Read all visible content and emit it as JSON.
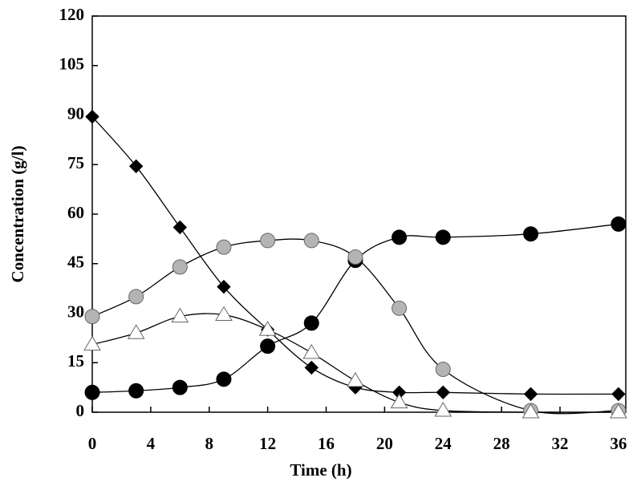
{
  "chart_data": {
    "type": "scatter",
    "x_label": "Time (h)",
    "y_label": "Concentration (g/l)",
    "x": [
      0,
      3,
      6,
      9,
      12,
      15,
      18,
      21,
      24,
      30,
      36
    ],
    "series": [
      {
        "color": "#000000",
        "marker": "diamond",
        "values": [
          89.5,
          74.5,
          56,
          38,
          25,
          13.5,
          7.5,
          6,
          6,
          5.5,
          5.5
        ]
      },
      {
        "color": "#000000",
        "marker": "circle",
        "values": [
          6,
          6.5,
          7.5,
          10,
          20,
          27,
          46,
          53,
          53,
          54,
          57
        ]
      },
      {
        "color": "#b4b4b4",
        "marker": "circle",
        "values": [
          29,
          35,
          44,
          50,
          52,
          52,
          47,
          31.5,
          13,
          0.5,
          0.5
        ]
      },
      {
        "color": "#ffffff",
        "marker": "triangle",
        "values": [
          20.5,
          24,
          29,
          29.5,
          25,
          18,
          9.5,
          3,
          0.5,
          0,
          0
        ]
      }
    ],
    "xlim": [
      0,
      36.5
    ],
    "xticks": [
      0,
      4,
      8,
      12,
      16,
      20,
      24,
      28,
      32,
      36
    ],
    "ylim": [
      0,
      120
    ],
    "yticks": [
      0,
      15,
      30,
      45,
      60,
      75,
      90,
      105,
      120
    ]
  }
}
